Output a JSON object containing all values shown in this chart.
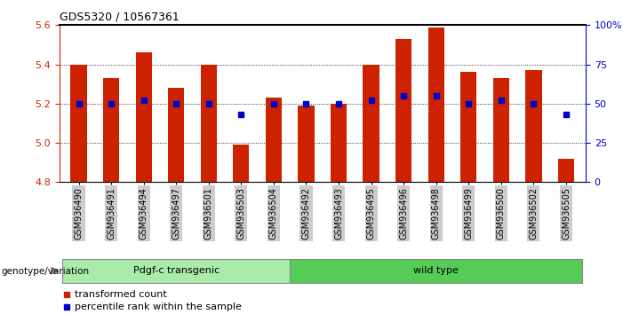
{
  "title": "GDS5320 / 10567361",
  "categories": [
    "GSM936490",
    "GSM936491",
    "GSM936494",
    "GSM936497",
    "GSM936501",
    "GSM936503",
    "GSM936504",
    "GSM936492",
    "GSM936493",
    "GSM936495",
    "GSM936496",
    "GSM936498",
    "GSM936499",
    "GSM936500",
    "GSM936502",
    "GSM936505"
  ],
  "red_values": [
    5.4,
    5.33,
    5.46,
    5.28,
    5.4,
    4.99,
    5.23,
    5.19,
    5.2,
    5.4,
    5.53,
    5.59,
    5.36,
    5.33,
    5.37,
    4.92
  ],
  "blue_percentiles": [
    50,
    50,
    52,
    50,
    50,
    43,
    50,
    50,
    50,
    52,
    55,
    55,
    50,
    52,
    50,
    43
  ],
  "ylim": [
    4.8,
    5.6
  ],
  "y2lim": [
    0,
    100
  ],
  "y_ticks": [
    4.8,
    5.0,
    5.2,
    5.4,
    5.6
  ],
  "y2_ticks": [
    0,
    25,
    50,
    75,
    100
  ],
  "y2_tick_labels": [
    "0",
    "25",
    "50",
    "75",
    "100%"
  ],
  "red_color": "#cc2200",
  "blue_color": "#0000cc",
  "bar_width": 0.5,
  "group1_label": "Pdgf-c transgenic",
  "group2_label": "wild type",
  "group1_indices": [
    0,
    1,
    2,
    3,
    4,
    5,
    6
  ],
  "group2_indices": [
    7,
    8,
    9,
    10,
    11,
    12,
    13,
    14,
    15
  ],
  "group1_color": "#aaeaaa",
  "group2_color": "#55cc55",
  "genotype_label": "genotype/variation",
  "legend1": "transformed count",
  "legend2": "percentile rank within the sample",
  "baseline": 4.8,
  "tick_color_left": "#cc2200",
  "tick_color_right": "#0000cc",
  "xtick_bg": "#cccccc",
  "n_bars": 16,
  "group1_count": 7,
  "group2_count": 9
}
